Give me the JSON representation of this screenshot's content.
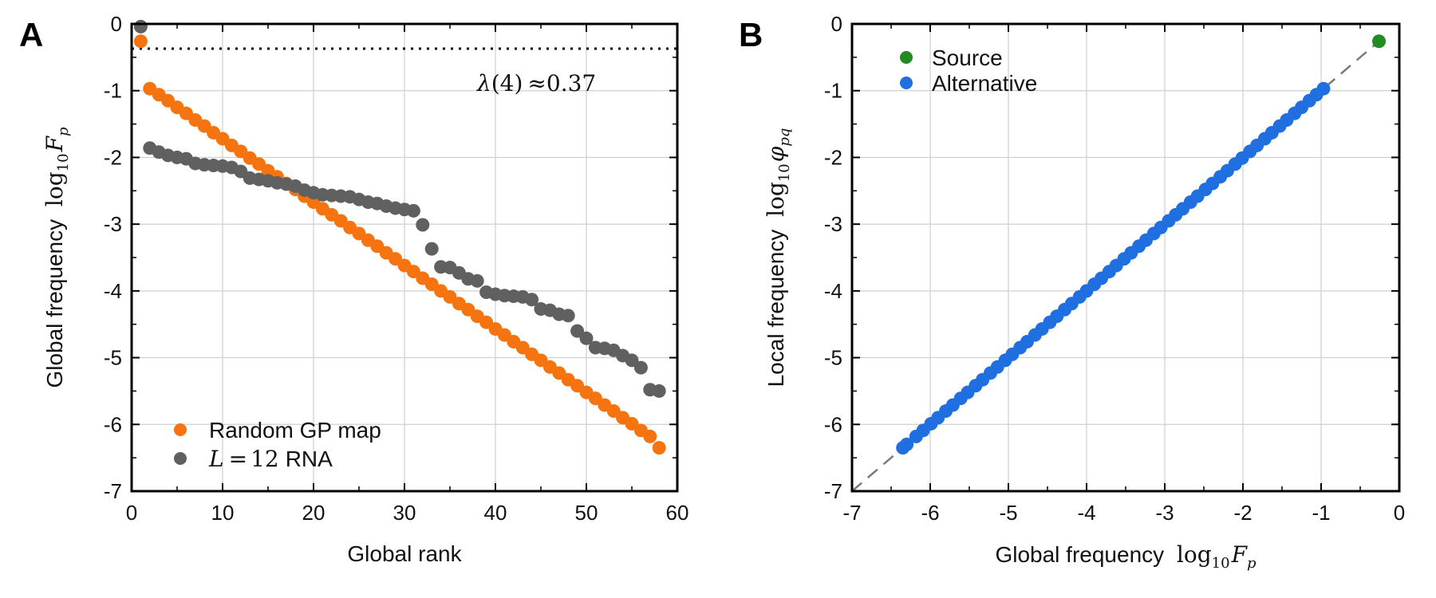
{
  "colors": {
    "orange": "#f5740f",
    "gray": "#606060",
    "green": "#228B22",
    "blue": "#1f6fe0",
    "dashed": "#7a7a7a",
    "axis": "#000000",
    "grid": "#cfcfcf"
  },
  "chart_data": [
    {
      "panel": "A",
      "type": "scatter",
      "xlabel": "Global rank",
      "ylabel_text": "Global frequency",
      "ylabel_math": "log10 Fp",
      "xlim": [
        0,
        60
      ],
      "ylim": [
        -7,
        0
      ],
      "xticks": [
        0,
        10,
        20,
        30,
        40,
        50,
        60
      ],
      "yticks": [
        0,
        -1,
        -2,
        -3,
        -4,
        -5,
        -6,
        -7
      ],
      "hline": {
        "y": -0.37,
        "style": "dotted"
      },
      "annotation": "λ(4) ≈ 0.37",
      "legend": {
        "location": "bottom-left",
        "entries": [
          "Random GP map",
          "L = 12 RNA"
        ]
      },
      "series": [
        {
          "name": "Random GP map",
          "color_key": "orange",
          "x": [
            1,
            2,
            3,
            4,
            5,
            6,
            7,
            8,
            9,
            10,
            11,
            12,
            13,
            14,
            15,
            16,
            17,
            18,
            19,
            20,
            21,
            22,
            23,
            24,
            25,
            26,
            27,
            28,
            29,
            30,
            31,
            32,
            33,
            34,
            35,
            36,
            37,
            38,
            39,
            40,
            41,
            42,
            43,
            44,
            45,
            46,
            47,
            48,
            49,
            50,
            51,
            52,
            53,
            54,
            55,
            56,
            57,
            58
          ],
          "y": [
            -0.26,
            -0.97,
            -1.06,
            -1.15,
            -1.25,
            -1.34,
            -1.44,
            -1.53,
            -1.63,
            -1.72,
            -1.82,
            -1.91,
            -2.01,
            -2.1,
            -2.2,
            -2.29,
            -2.39,
            -2.48,
            -2.58,
            -2.67,
            -2.77,
            -2.86,
            -2.95,
            -3.05,
            -3.14,
            -3.24,
            -3.33,
            -3.43,
            -3.52,
            -3.62,
            -3.71,
            -3.81,
            -3.9,
            -4.0,
            -4.09,
            -4.19,
            -4.28,
            -4.38,
            -4.47,
            -4.57,
            -4.66,
            -4.76,
            -4.85,
            -4.95,
            -5.04,
            -5.14,
            -5.23,
            -5.33,
            -5.42,
            -5.52,
            -5.61,
            -5.71,
            -5.8,
            -5.9,
            -5.99,
            -6.09,
            -6.18,
            -6.35
          ]
        },
        {
          "name": "L = 12 RNA",
          "color_key": "gray",
          "x": [
            1,
            2,
            3,
            4,
            5,
            6,
            7,
            8,
            9,
            10,
            11,
            12,
            13,
            14,
            15,
            16,
            17,
            18,
            19,
            20,
            21,
            22,
            23,
            24,
            25,
            26,
            27,
            28,
            29,
            30,
            31,
            32,
            33,
            34,
            35,
            36,
            37,
            38,
            39,
            40,
            41,
            42,
            43,
            44,
            45,
            46,
            47,
            48,
            49,
            50,
            51,
            52,
            53,
            54,
            55,
            56,
            57,
            58
          ],
          "y": [
            -0.04,
            -1.86,
            -1.92,
            -1.97,
            -2.0,
            -2.02,
            -2.09,
            -2.11,
            -2.12,
            -2.13,
            -2.15,
            -2.21,
            -2.31,
            -2.33,
            -2.35,
            -2.38,
            -2.4,
            -2.43,
            -2.49,
            -2.53,
            -2.56,
            -2.57,
            -2.58,
            -2.59,
            -2.63,
            -2.67,
            -2.69,
            -2.73,
            -2.76,
            -2.78,
            -2.8,
            -3.01,
            -3.37,
            -3.64,
            -3.65,
            -3.73,
            -3.82,
            -3.85,
            -4.02,
            -4.05,
            -4.07,
            -4.08,
            -4.09,
            -4.13,
            -4.27,
            -4.29,
            -4.35,
            -4.37,
            -4.6,
            -4.71,
            -4.85,
            -4.86,
            -4.89,
            -4.97,
            -5.04,
            -5.15,
            -5.48,
            -5.5
          ]
        }
      ]
    },
    {
      "panel": "B",
      "type": "scatter",
      "xlabel_text": "Global frequency",
      "xlabel_math": "log10 Fp",
      "ylabel_text": "Local frequency",
      "ylabel_math": "log10 φpq",
      "xlim": [
        -7,
        0
      ],
      "ylim": [
        -7,
        0
      ],
      "xticks": [
        -7,
        -6,
        -5,
        -4,
        -3,
        -2,
        -1,
        0
      ],
      "yticks": [
        0,
        -1,
        -2,
        -3,
        -4,
        -5,
        -6,
        -7
      ],
      "diagonal": {
        "from": -7,
        "to": -0.2,
        "style": "dashed"
      },
      "legend": {
        "location": "top-left",
        "entries": [
          "Source",
          "Alternative"
        ]
      },
      "series": [
        {
          "name": "Source",
          "color_key": "green",
          "x": [
            -0.26
          ],
          "y": [
            -0.26
          ]
        },
        {
          "name": "Alternative",
          "color_key": "blue",
          "x": [
            -0.97,
            -1.06,
            -1.15,
            -1.25,
            -1.34,
            -1.44,
            -1.53,
            -1.63,
            -1.72,
            -1.82,
            -1.91,
            -2.01,
            -2.1,
            -2.2,
            -2.29,
            -2.39,
            -2.48,
            -2.58,
            -2.67,
            -2.77,
            -2.86,
            -2.95,
            -3.05,
            -3.14,
            -3.24,
            -3.33,
            -3.43,
            -3.52,
            -3.62,
            -3.71,
            -3.81,
            -3.9,
            -4.0,
            -4.09,
            -4.19,
            -4.28,
            -4.38,
            -4.47,
            -4.57,
            -4.66,
            -4.76,
            -4.85,
            -4.95,
            -5.04,
            -5.14,
            -5.23,
            -5.33,
            -5.42,
            -5.52,
            -5.61,
            -5.71,
            -5.8,
            -5.9,
            -5.99,
            -6.09,
            -6.18,
            -6.3,
            -6.35
          ],
          "y": [
            -0.97,
            -1.06,
            -1.15,
            -1.25,
            -1.34,
            -1.44,
            -1.53,
            -1.63,
            -1.72,
            -1.82,
            -1.91,
            -2.01,
            -2.1,
            -2.2,
            -2.29,
            -2.39,
            -2.48,
            -2.58,
            -2.67,
            -2.77,
            -2.86,
            -2.95,
            -3.05,
            -3.14,
            -3.24,
            -3.33,
            -3.43,
            -3.52,
            -3.62,
            -3.71,
            -3.81,
            -3.9,
            -4.0,
            -4.09,
            -4.19,
            -4.28,
            -4.38,
            -4.47,
            -4.57,
            -4.66,
            -4.76,
            -4.85,
            -4.95,
            -5.04,
            -5.14,
            -5.23,
            -5.33,
            -5.42,
            -5.52,
            -5.61,
            -5.71,
            -5.8,
            -5.9,
            -5.99,
            -6.09,
            -6.18,
            -6.3,
            -6.35
          ]
        }
      ]
    }
  ]
}
